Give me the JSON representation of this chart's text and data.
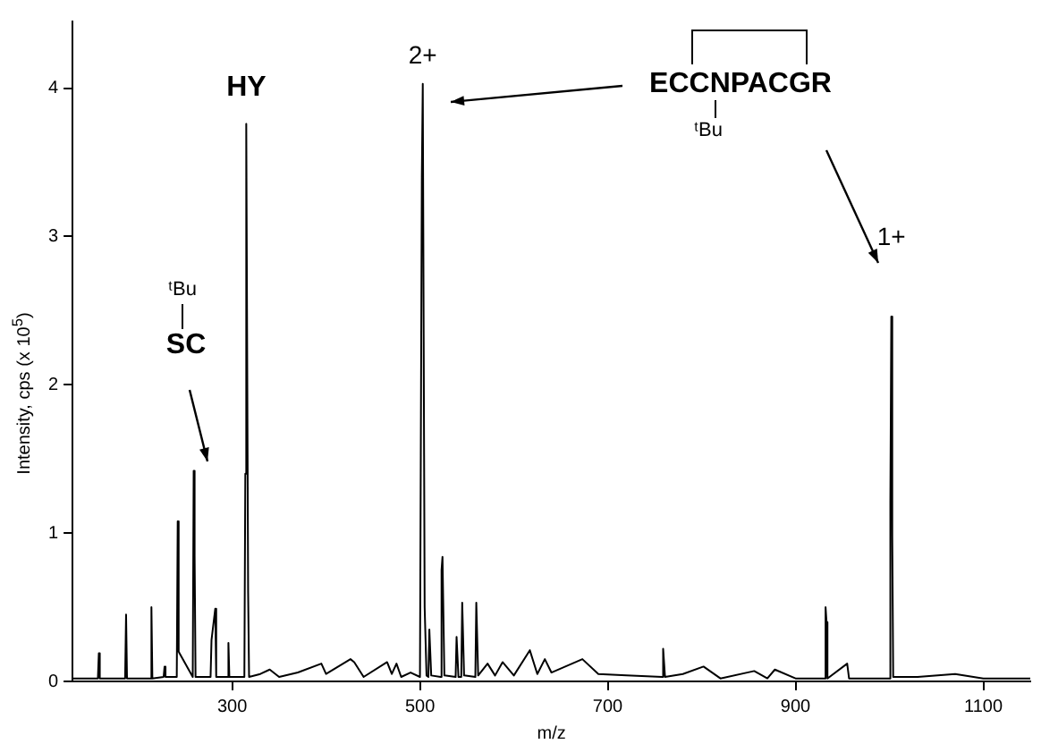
{
  "chart_data": {
    "type": "line",
    "xlabel": "m/z",
    "ylabel": "Intensity, cps (x 10$^{5}$)",
    "xlim": [
      130,
      1150
    ],
    "ylim": [
      0,
      4.45
    ],
    "xticks": [
      300,
      500,
      700,
      900,
      1100
    ],
    "yticks": [
      0,
      1,
      2,
      3,
      4
    ],
    "grid": false,
    "legend": false,
    "marker": "none",
    "annotations": [
      {
        "text": "HY",
        "x": 315,
        "y": 3.76
      },
      {
        "text": "2+",
        "x": 503,
        "y": 4.03
      },
      {
        "text": "1+",
        "x": 1002,
        "y": 2.46
      },
      "SC",
      "ᵗBu",
      "ECCNPACGR",
      "ᵗBu"
    ],
    "series": [
      {
        "color": "#000000",
        "x": [
          130,
          157,
          158,
          159,
          186,
          187,
          188,
          213,
          214,
          215,
          227,
          228,
          229,
          241,
          242,
          243,
          258,
          259,
          260,
          261,
          277,
          278,
          282,
          283,
          295,
          296,
          297,
          313,
          314,
          315,
          317,
          318,
          330,
          340,
          350,
          370,
          395,
          400,
          426,
          430,
          440,
          465,
          470,
          475,
          480,
          490,
          500,
          502,
          503,
          505,
          507,
          509,
          510,
          512,
          522,
          523,
          524,
          526,
          538,
          539,
          541,
          544,
          545,
          547,
          559,
          560,
          562,
          572,
          580,
          588,
          600,
          617,
          625,
          633,
          640,
          673,
          690,
          720,
          758,
          759,
          761,
          780,
          802,
          820,
          856,
          870,
          878,
          900,
          931,
          932,
          933,
          934,
          955,
          957,
          1000,
          1001,
          1002,
          1003,
          1004,
          1030,
          1070,
          1100,
          1150
        ],
        "values": [
          0.02,
          0.02,
          0.19,
          0.02,
          0.02,
          0.45,
          0.02,
          0.02,
          0.5,
          0.02,
          0.03,
          0.1,
          0.03,
          0.03,
          1.08,
          0.2,
          0.03,
          1.42,
          0.85,
          0.03,
          0.03,
          0.28,
          0.49,
          0.03,
          0.03,
          0.26,
          0.03,
          0.03,
          1.4,
          3.76,
          0.6,
          0.03,
          0.05,
          0.08,
          0.03,
          0.06,
          0.12,
          0.05,
          0.15,
          0.13,
          0.03,
          0.13,
          0.05,
          0.12,
          0.03,
          0.06,
          0.03,
          3.4,
          4.03,
          0.5,
          0.04,
          0.03,
          0.35,
          0.04,
          0.03,
          0.75,
          0.84,
          0.04,
          0.03,
          0.3,
          0.03,
          0.03,
          0.53,
          0.04,
          0.03,
          0.53,
          0.04,
          0.12,
          0.04,
          0.13,
          0.04,
          0.21,
          0.05,
          0.15,
          0.06,
          0.15,
          0.05,
          0.04,
          0.03,
          0.22,
          0.03,
          0.05,
          0.1,
          0.02,
          0.07,
          0.02,
          0.08,
          0.02,
          0.02,
          0.5,
          0.4,
          0.02,
          0.12,
          0.02,
          0.02,
          1.22,
          2.46,
          0.98,
          0.03,
          0.03,
          0.05,
          0.02,
          0.02
        ]
      }
    ]
  }
}
